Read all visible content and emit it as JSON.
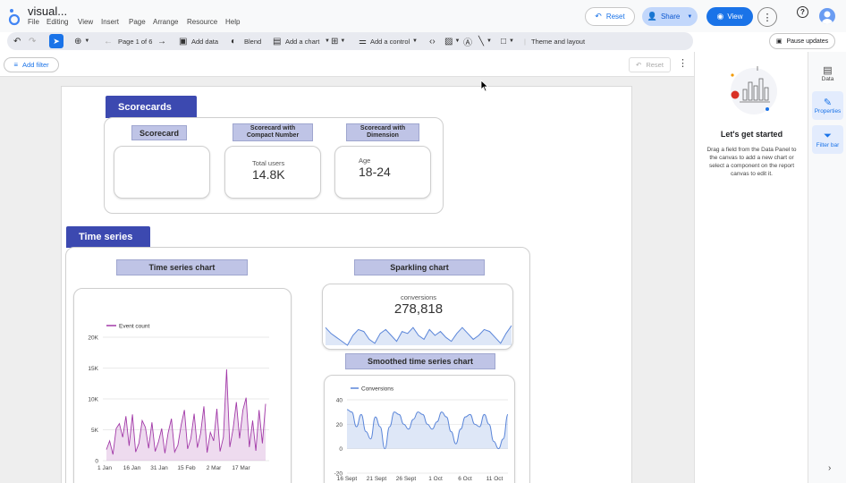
{
  "header": {
    "title": "visual...",
    "menu": [
      "File",
      "Editing",
      "View",
      "Insert",
      "Page",
      "Arrange",
      "Resource",
      "Help"
    ],
    "reset_label": "Reset",
    "share_label": "Share",
    "view_label": "View"
  },
  "toolbar": {
    "page_indicator": "Page 1 of 6",
    "add_data": "Add data",
    "blend": "Blend",
    "add_chart": "Add a chart",
    "add_control": "Add a control",
    "theme_layout": "Theme and layout",
    "pause_updates": "Pause updates"
  },
  "filter_row": {
    "add_filter": "Add filter",
    "reset": "Reset"
  },
  "scorecards_section": {
    "title": "Scorecards",
    "chips": [
      "Scorecard",
      "Scorecard with\nCompact Number",
      "Scorecard with\nDimension"
    ],
    "compact": {
      "label": "Total users",
      "value": "14.8K"
    },
    "dimension": {
      "label": "Age",
      "value": "18-24"
    }
  },
  "timeseries_section": {
    "title": "Time series",
    "chip_timeseries": "Time series chart",
    "chip_sparkline": "Sparkling chart",
    "chip_smoothed": "Smoothed time series chart"
  },
  "sparkline": {
    "label": "conversions",
    "value": "278,818"
  },
  "charts": {
    "accent_purple": "#a23aa8",
    "accent_blue": "#5b86d9"
  },
  "chart_data": [
    {
      "type": "line",
      "series": [
        {
          "name": "Event count",
          "values": [
            1800,
            3200,
            1000,
            5200,
            6000,
            3800,
            7200,
            2400,
            7500,
            1400,
            2800,
            6500,
            5400,
            2000,
            6200,
            1500,
            3000,
            5200,
            1200,
            4500,
            6800,
            1400,
            2500,
            5800,
            8200,
            1900,
            3600,
            7600,
            2100,
            4400,
            8800,
            1300,
            4600,
            3200,
            8400,
            1500,
            3800,
            14800,
            2200,
            5200,
            9500,
            3600,
            8200,
            10200,
            2200,
            6500,
            1600,
            8200,
            2800,
            9200
          ]
        }
      ],
      "x_ticks": [
        "1 Jan",
        "16 Jan",
        "31 Jan",
        "15 Feb",
        "2 Mar",
        "17 Mar"
      ],
      "y_ticks": [
        "0",
        "5K",
        "10K",
        "15K",
        "20K"
      ],
      "ylim": [
        0,
        20000
      ]
    },
    {
      "type": "area",
      "title": "conversions",
      "values": [
        12,
        9,
        7,
        5,
        3,
        8,
        11,
        10,
        6,
        4,
        9,
        11,
        8,
        5,
        10,
        9,
        12,
        8,
        6,
        11,
        8,
        10,
        7,
        5,
        9,
        12,
        9,
        6,
        8,
        11,
        10,
        7,
        4,
        9,
        13
      ]
    },
    {
      "type": "area",
      "series": [
        {
          "name": "Conversions",
          "values": [
            32,
            30,
            18,
            28,
            14,
            8,
            26,
            18,
            0,
            18,
            30,
            28,
            20,
            16,
            24,
            30,
            28,
            20,
            16,
            22,
            30,
            26,
            14,
            4,
            16,
            26,
            28,
            20,
            18,
            28,
            20,
            6,
            0,
            8,
            28
          ]
        }
      ],
      "x_ticks": [
        "16 Sept",
        "21 Sept",
        "26 Sept",
        "1 Oct",
        "6 Oct",
        "11 Oct"
      ],
      "y_ticks": [
        "-20",
        "0",
        "20",
        "40"
      ],
      "ylim": [
        -20,
        40
      ]
    }
  ],
  "right_panel": {
    "heading": "Let's get started",
    "body": "Drag a field from the Data Panel to the canvas to add a new chart or select a component on the report canvas to edit it."
  },
  "rail": {
    "data": "Data",
    "properties": "Properties",
    "filter_bar": "Filter bar"
  }
}
